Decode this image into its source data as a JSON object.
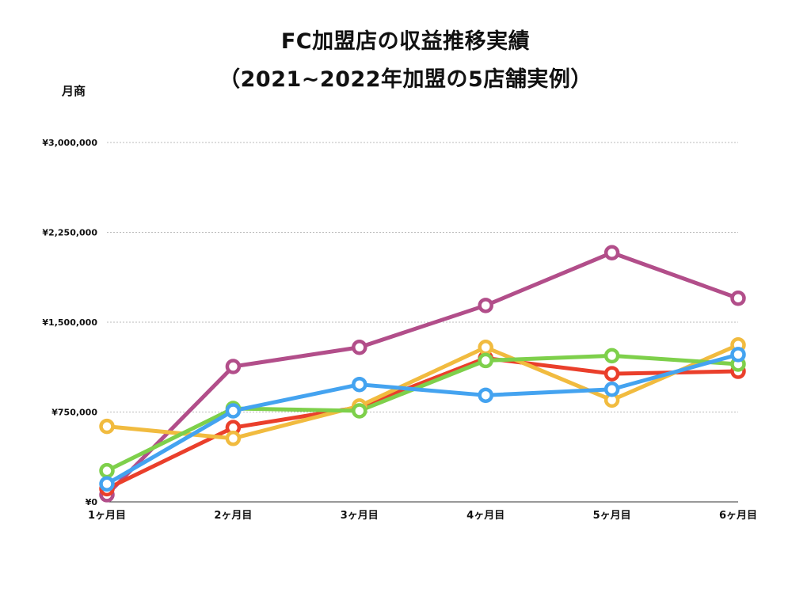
{
  "chart_data": {
    "type": "line",
    "title": "FC加盟店の収益推移実績",
    "subtitle": "（2021~2022年加盟の5店舗実例）",
    "ylabel": "月商",
    "xlabel": "",
    "categories": [
      "1ヶ月目",
      "2ヶ月目",
      "3ヶ月目",
      "4ヶ月目",
      "5ヶ月目",
      "6ヶ月目"
    ],
    "ylim": [
      0,
      3000000
    ],
    "yticks": [
      0,
      750000,
      1500000,
      2250000,
      3000000
    ],
    "ytick_labels": [
      "¥0",
      "¥750,000",
      "¥1,500,000",
      "¥2,250,000",
      "¥3,000,000"
    ],
    "grid": true,
    "legend": "none",
    "series": [
      {
        "color": "#b24e8a",
        "values": [
          60000,
          1130000,
          1290000,
          1640000,
          2080000,
          1700000
        ]
      },
      {
        "color": "#ea3f2b",
        "values": [
          110000,
          620000,
          790000,
          1200000,
          1070000,
          1090000
        ]
      },
      {
        "color": "#f1bb3f",
        "values": [
          630000,
          530000,
          800000,
          1290000,
          850000,
          1310000
        ]
      },
      {
        "color": "#7ed04b",
        "values": [
          260000,
          780000,
          760000,
          1180000,
          1220000,
          1150000
        ]
      },
      {
        "color": "#44a3f0",
        "values": [
          150000,
          760000,
          980000,
          890000,
          940000,
          1230000
        ]
      }
    ]
  }
}
